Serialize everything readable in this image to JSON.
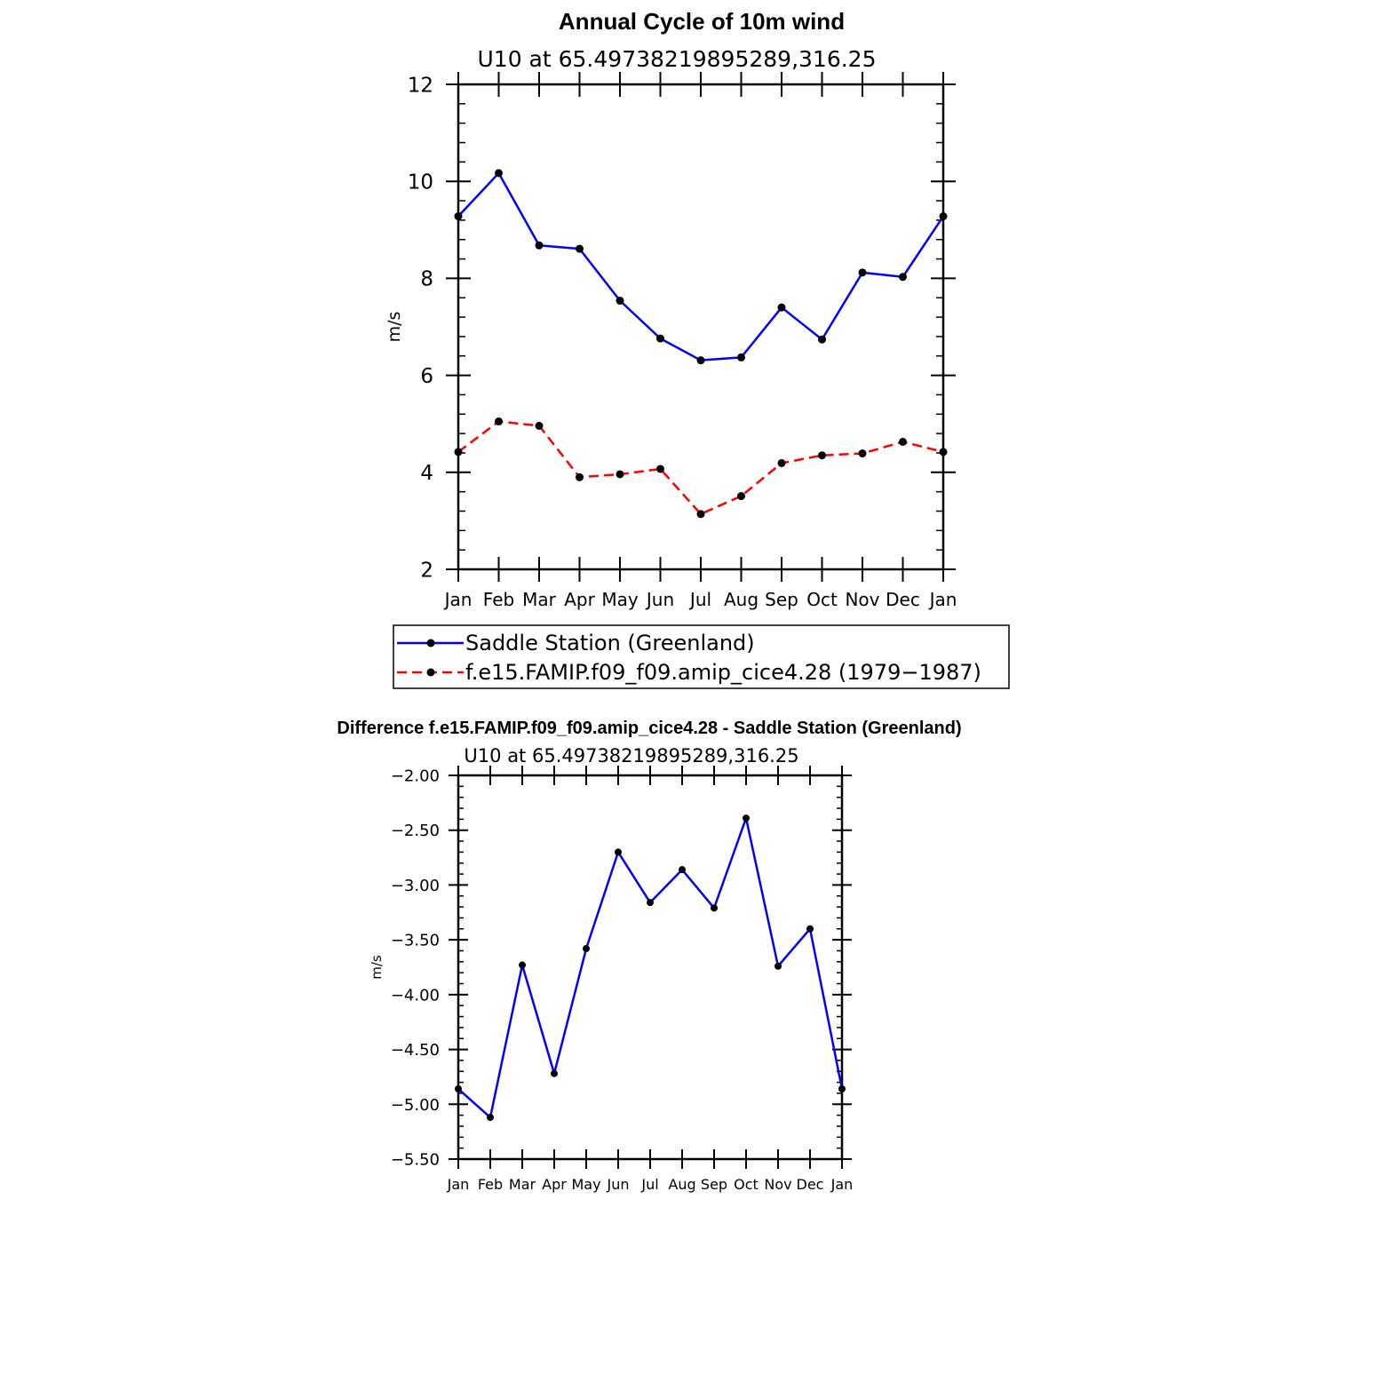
{
  "chart_data": [
    {
      "type": "line",
      "title": "Annual Cycle of 10m wind",
      "subtitle": "U10 at 65.49738219895289,316.25",
      "xlabel": "",
      "ylabel": "m/s",
      "categories": [
        "Jan",
        "Feb",
        "Mar",
        "Apr",
        "May",
        "Jun",
        "Jul",
        "Aug",
        "Sep",
        "Oct",
        "Nov",
        "Dec",
        "Jan"
      ],
      "ylim": [
        2,
        12
      ],
      "yticks": [
        "2",
        "4",
        "6",
        "8",
        "10",
        "12"
      ],
      "grid": false,
      "legend_position": "bottom",
      "series": [
        {
          "name": "Saddle Station (Greenland)",
          "color": "#0000ff",
          "dash": "solid",
          "values": [
            9.28,
            10.17,
            8.68,
            8.61,
            7.54,
            6.76,
            6.31,
            6.37,
            7.4,
            6.74,
            8.12,
            8.03,
            9.28
          ]
        },
        {
          "name": "f.e15.FAMIP.f09_f09.amip_cice4.28 (1979−1987)",
          "color": "#ff0000",
          "dash": "dashed",
          "values": [
            4.42,
            5.05,
            4.96,
            3.9,
            3.96,
            4.07,
            3.14,
            3.51,
            4.19,
            4.35,
            4.39,
            4.63,
            4.42
          ]
        }
      ]
    },
    {
      "type": "line",
      "title": "Difference f.e15.FAMIP.f09_f09.amip_cice4.28 - Saddle Station (Greenland)",
      "subtitle": "U10 at 65.49738219895289,316.25",
      "xlabel": "",
      "ylabel": "m/s",
      "categories": [
        "Jan",
        "Feb",
        "Mar",
        "Apr",
        "May",
        "Jun",
        "Jul",
        "Aug",
        "Sep",
        "Oct",
        "Nov",
        "Dec",
        "Jan"
      ],
      "ylim": [
        -5.5,
        -2.0
      ],
      "yticks": [
        "−2.00",
        "−2.50",
        "−3.00",
        "−3.50",
        "−4.00",
        "−4.50",
        "−5.00",
        "−5.50"
      ],
      "grid": false,
      "series": [
        {
          "color": "#0000ff",
          "dash": "solid",
          "values": [
            -4.86,
            -5.12,
            -3.73,
            -4.72,
            -3.58,
            -2.7,
            -3.16,
            -2.86,
            -3.21,
            -2.39,
            -3.74,
            -3.4,
            -4.86
          ]
        }
      ]
    }
  ]
}
